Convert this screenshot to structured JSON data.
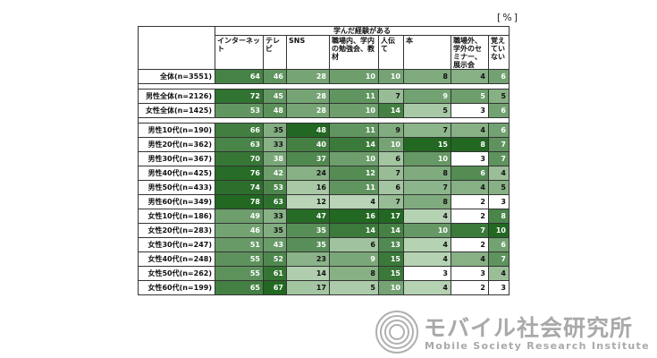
{
  "unit_label": "[%]",
  "chart_data": {
    "type": "table",
    "group_header": "学んだ経験がある",
    "columns": [
      "インターネット",
      "テレビ",
      "SNS",
      "職場内、学内の勉強会、教材",
      "人伝て",
      "本",
      "職場外、学外のセミナー、展示会",
      "覚えていない"
    ],
    "rows": [
      {
        "label": "全体(n=3551)",
        "values": [
          64,
          46,
          28,
          10,
          10,
          8,
          4,
          6
        ]
      },
      {
        "spacer": true
      },
      {
        "label": "男性全体(n=2126)",
        "values": [
          72,
          45,
          28,
          11,
          7,
          9,
          5,
          5
        ]
      },
      {
        "label": "女性全体(n=1425)",
        "values": [
          53,
          48,
          28,
          10,
          14,
          5,
          3,
          6
        ]
      },
      {
        "spacer": true
      },
      {
        "label": "男性10代(n=190)",
        "values": [
          66,
          35,
          48,
          11,
          9,
          7,
          4,
          6
        ]
      },
      {
        "label": "男性20代(n=362)",
        "values": [
          63,
          33,
          40,
          14,
          10,
          15,
          8,
          7
        ]
      },
      {
        "label": "男性30代(n=367)",
        "values": [
          70,
          38,
          37,
          10,
          6,
          10,
          3,
          7
        ]
      },
      {
        "label": "男性40代(n=425)",
        "values": [
          76,
          42,
          24,
          12,
          7,
          8,
          6,
          4
        ]
      },
      {
        "label": "男性50代(n=433)",
        "values": [
          74,
          53,
          16,
          11,
          6,
          7,
          4,
          5
        ]
      },
      {
        "label": "男性60代(n=349)",
        "values": [
          78,
          63,
          12,
          4,
          7,
          8,
          2,
          3
        ]
      },
      {
        "label": "女性10代(n=186)",
        "values": [
          49,
          33,
          47,
          16,
          17,
          4,
          2,
          8
        ]
      },
      {
        "label": "女性20代(n=283)",
        "values": [
          46,
          35,
          35,
          14,
          14,
          10,
          7,
          10
        ]
      },
      {
        "label": "女性30代(n=247)",
        "values": [
          51,
          43,
          35,
          6,
          13,
          4,
          2,
          6
        ]
      },
      {
        "label": "女性40代(n=248)",
        "values": [
          55,
          52,
          23,
          9,
          15,
          4,
          4,
          7
        ]
      },
      {
        "label": "女性50代(n=262)",
        "values": [
          55,
          61,
          14,
          8,
          15,
          3,
          3,
          4
        ]
      },
      {
        "label": "女性60代(n=199)",
        "values": [
          65,
          67,
          17,
          5,
          10,
          4,
          2,
          3
        ]
      }
    ]
  },
  "logo": {
    "title": "モバイル社会研究所",
    "subtitle": "Mobile Society Research Institute",
    "gray": "#a9a9a9"
  }
}
